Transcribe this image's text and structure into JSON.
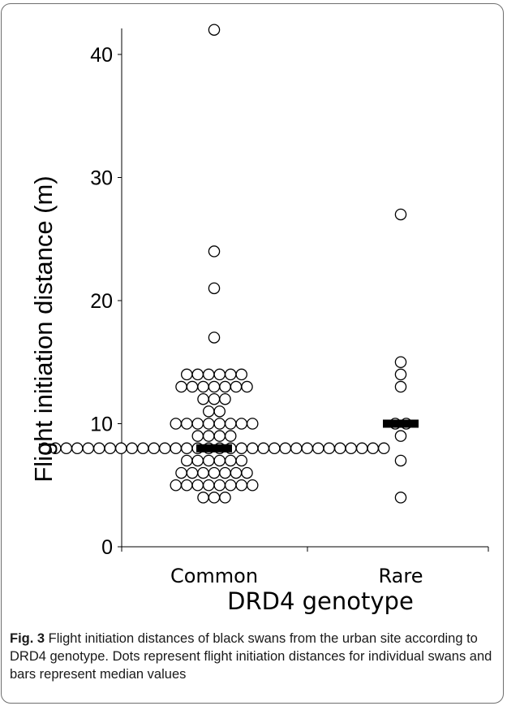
{
  "chart_data": {
    "type": "scatter",
    "subtype": "dot plot (beeswarm) with median bars",
    "xlabel": "DRD4 genotype",
    "ylabel": "Flight initiation distance (m)",
    "categories": [
      "Common",
      "Rare"
    ],
    "ylim": [
      0,
      42
    ],
    "yticks": [
      0,
      10,
      20,
      30,
      40
    ],
    "grid": false,
    "legend": "none",
    "series": [
      {
        "category": "Common",
        "values": [
          42,
          24,
          21,
          17,
          14,
          14,
          14,
          14,
          14,
          14,
          13,
          13,
          13,
          13,
          13,
          13,
          13,
          12,
          12,
          12,
          11,
          11,
          10,
          10,
          10,
          10,
          10,
          10,
          10,
          10,
          9,
          9,
          9,
          9,
          8,
          8,
          8,
          8,
          8,
          8,
          8,
          8,
          8,
          8,
          8,
          8,
          8,
          8,
          8,
          8,
          8,
          8,
          8,
          8,
          8,
          8,
          8,
          8,
          8,
          8,
          8,
          8,
          8,
          8,
          8,
          8,
          7,
          7,
          7,
          7,
          7,
          7,
          6,
          6,
          6,
          6,
          6,
          6,
          6,
          5,
          5,
          5,
          5,
          5,
          5,
          5,
          5,
          4,
          4,
          4
        ],
        "median": 8
      },
      {
        "category": "Rare",
        "values": [
          27,
          15,
          14,
          13,
          10,
          10,
          9,
          7,
          4
        ],
        "median": 10
      }
    ]
  },
  "caption": {
    "label": "Fig. 3",
    "text": " Flight initiation distances of black swans from the urban site according to DRD4 genotype. Dots represent flight initiation distances for individual swans and bars represent median values"
  },
  "colors": {
    "marker_stroke": "#000000",
    "marker_fill": "#ffffff",
    "median_bar": "#000000",
    "axis": "#000000"
  }
}
